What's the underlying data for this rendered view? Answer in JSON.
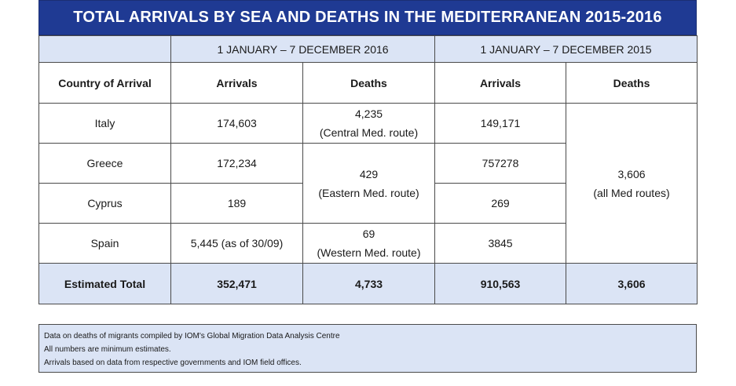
{
  "title": "TOTAL ARRIVALS BY SEA AND DEATHS IN THE MEDITERRANEAN 2015-2016",
  "periods": {
    "p2016": "1 JANUARY – 7 DECEMBER 2016",
    "p2015": "1 JANUARY –  7 DECEMBER 2015"
  },
  "headers": {
    "country": "Country of Arrival",
    "arrivals_2016": "Arrivals",
    "deaths_2016": "Deaths",
    "arrivals_2015": "Arrivals",
    "deaths_2015": "Deaths"
  },
  "rows": [
    {
      "country": "Italy",
      "arrivals_2016": "174,603",
      "arrivals_2015": "149,171"
    },
    {
      "country": "Greece",
      "arrivals_2016": "172,234",
      "arrivals_2015": "757278"
    },
    {
      "country": "Cyprus",
      "arrivals_2016": "189",
      "arrivals_2015": "269"
    },
    {
      "country": "Spain",
      "arrivals_2016": "5,445 (as of 30/09)",
      "arrivals_2015": "3845"
    }
  ],
  "deaths_2016": {
    "central": {
      "value": "4,235",
      "route": "(Central Med. route)"
    },
    "eastern": {
      "value": "429",
      "route": "(Eastern Med. route)"
    },
    "western": {
      "value": "69",
      "route": "(Western Med. route)"
    }
  },
  "deaths_2015": {
    "value": "3,606",
    "route": "(all Med routes)"
  },
  "total": {
    "label": "Estimated Total",
    "arrivals_2016": "352,471",
    "deaths_2016": "4,733",
    "arrivals_2015": "910,563",
    "deaths_2015": "3,606"
  },
  "notes": [
    "Data on deaths of migrants compiled by IOM's Global Migration Data Analysis Centre",
    "All numbers are minimum estimates.",
    "Arrivals based on data from respective governments and IOM field offices."
  ],
  "colors": {
    "banner": "#1f3a93",
    "accent_text": "#1f3a93",
    "light_fill": "#dbe4f5"
  }
}
